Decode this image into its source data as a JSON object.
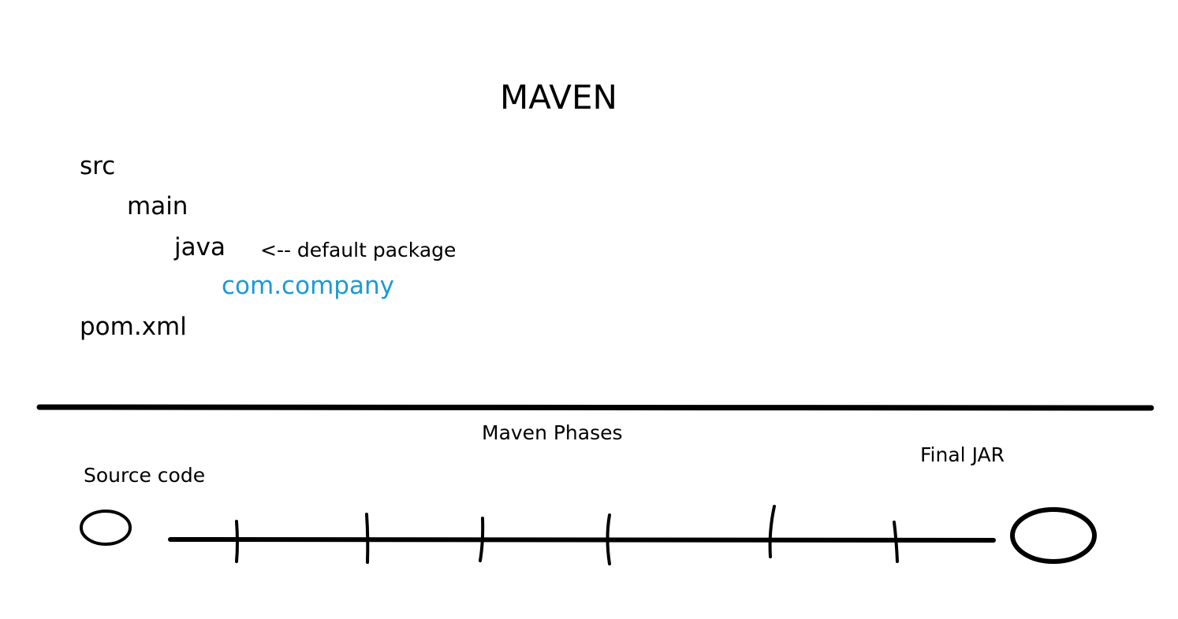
{
  "title": "MAVEN",
  "tree": {
    "src": "src",
    "main": "main",
    "java": "java",
    "java_note": "<-- default package",
    "package": "com.company",
    "pom": "pom.xml"
  },
  "phases": {
    "label": "Maven Phases",
    "start_label": "Source code",
    "end_label": "Final JAR",
    "phase_tick_count": 6
  },
  "colors": {
    "ink": "#000000",
    "package_text": "#1a9ad6",
    "background": "#ffffff"
  }
}
